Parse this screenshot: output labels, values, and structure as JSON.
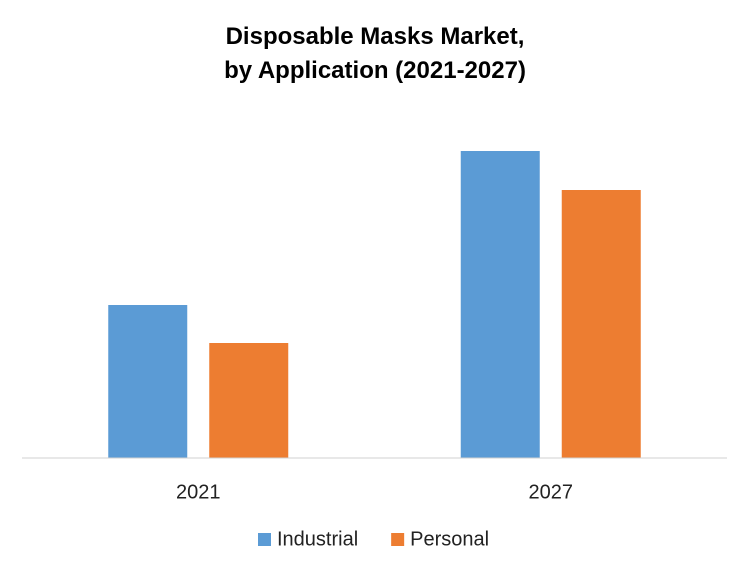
{
  "chart_data": {
    "type": "bar",
    "title": "Disposable Masks Market,\nby Application (2021-2027)",
    "categories": [
      "2021",
      "2027"
    ],
    "series": [
      {
        "name": "Industrial",
        "color": "#5b9bd5",
        "values": [
          153,
          307
        ]
      },
      {
        "name": "Personal",
        "color": "#ed7d31",
        "values": [
          115,
          268
        ]
      }
    ],
    "ylim": [
      0,
      340
    ],
    "legend": "bottom"
  }
}
